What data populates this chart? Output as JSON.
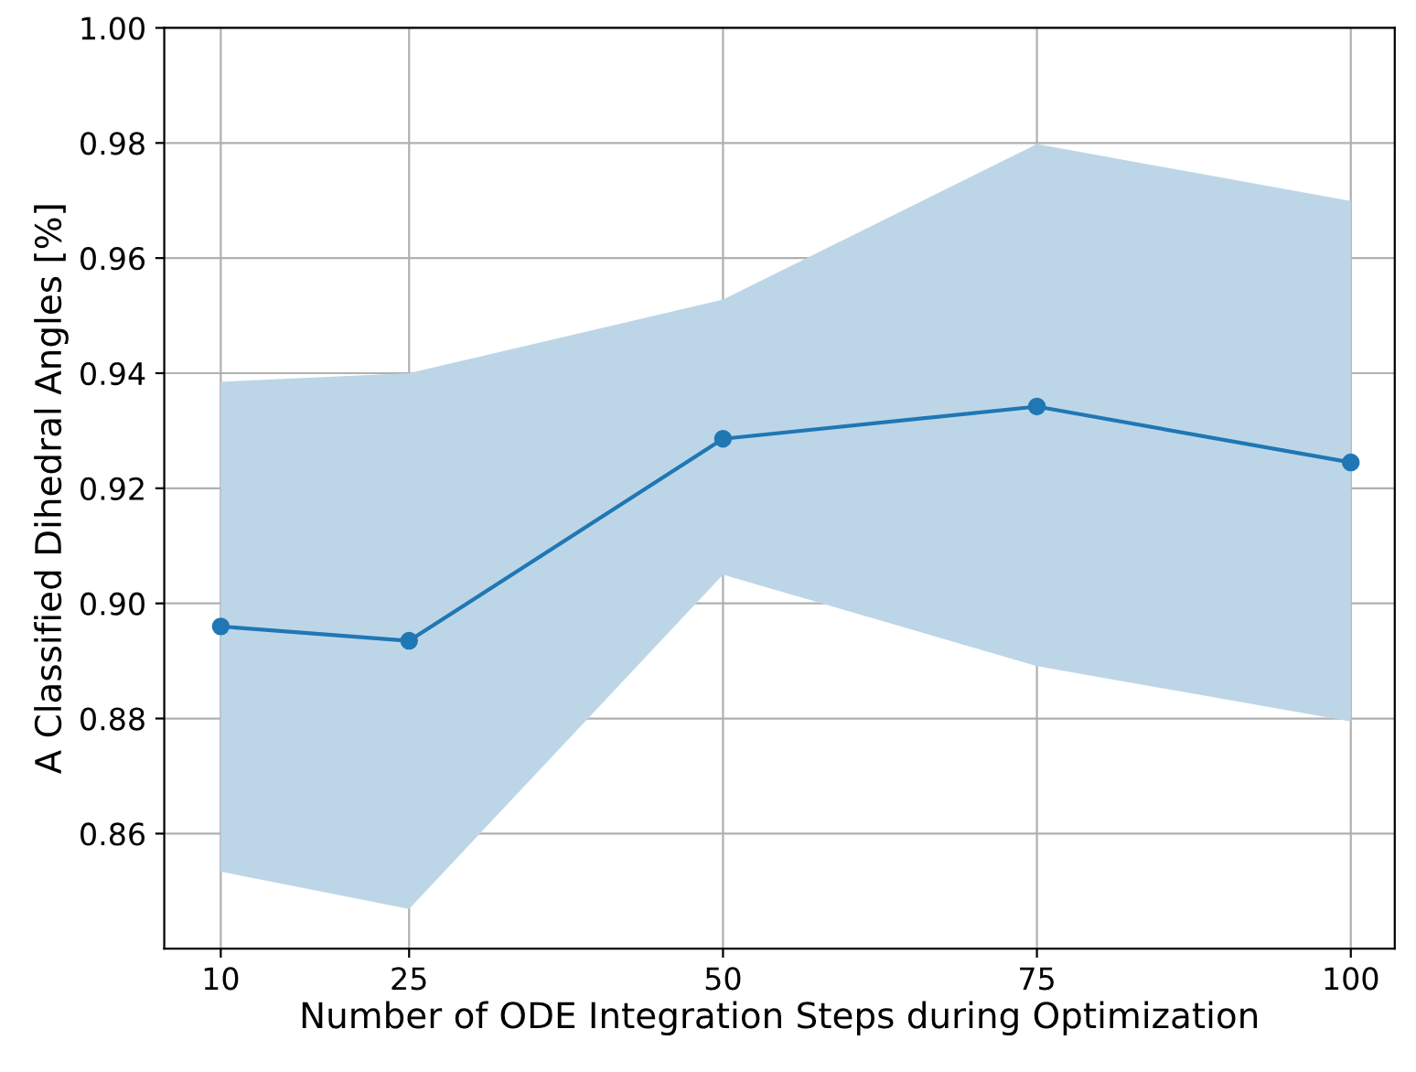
{
  "chart_data": {
    "type": "line",
    "xlabel": "Number of ODE Integration Steps during Optimization",
    "ylabel": "A Classified Dihedral Angles [%]",
    "x": [
      10,
      25,
      50,
      75,
      100
    ],
    "series": [
      {
        "color": "#1f77b4",
        "values": [
          0.896,
          0.8935,
          0.9286,
          0.9342,
          0.9245
        ],
        "lower": [
          0.8534,
          0.8469,
          0.905,
          0.8891,
          0.8795
        ],
        "upper": [
          0.9385,
          0.94,
          0.9528,
          0.9798,
          0.9699
        ]
      }
    ],
    "xlim": [
      5.5,
      103.5
    ],
    "xticks": [
      10,
      25,
      50,
      75,
      100
    ],
    "ylim": [
      0.84,
      1.0
    ],
    "yticks": [
      {
        "value": 0.86,
        "label": "0.86"
      },
      {
        "value": 0.88,
        "label": "0.88"
      },
      {
        "value": 0.9,
        "label": "0.90"
      },
      {
        "value": 0.92,
        "label": "0.92"
      },
      {
        "value": 0.94,
        "label": "0.94"
      },
      {
        "value": 0.96,
        "label": "0.96"
      },
      {
        "value": 0.98,
        "label": "0.98"
      },
      {
        "value": 1.0,
        "label": "1.00"
      }
    ],
    "grid": true,
    "marker": "circle",
    "line_style": "solid"
  }
}
